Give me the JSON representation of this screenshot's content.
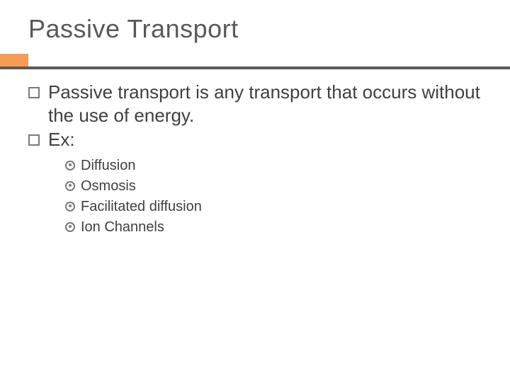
{
  "title": "Passive Transport",
  "colors": {
    "accent": "#f59d56",
    "rule": "#5b5b5b",
    "text": "#404040",
    "title": "#595959",
    "bullet_border": "#7a7a7a"
  },
  "typography": {
    "title_fontsize": 36,
    "lvl1_fontsize": 26,
    "lvl2_fontsize": 20,
    "font_family": "Arial"
  },
  "bullets": {
    "lvl1": [
      "Passive transport is any transport that occurs without the use of energy.",
      "Ex:"
    ],
    "lvl2": [
      "Diffusion",
      "Osmosis",
      "Facilitated diffusion",
      "Ion Channels"
    ]
  }
}
